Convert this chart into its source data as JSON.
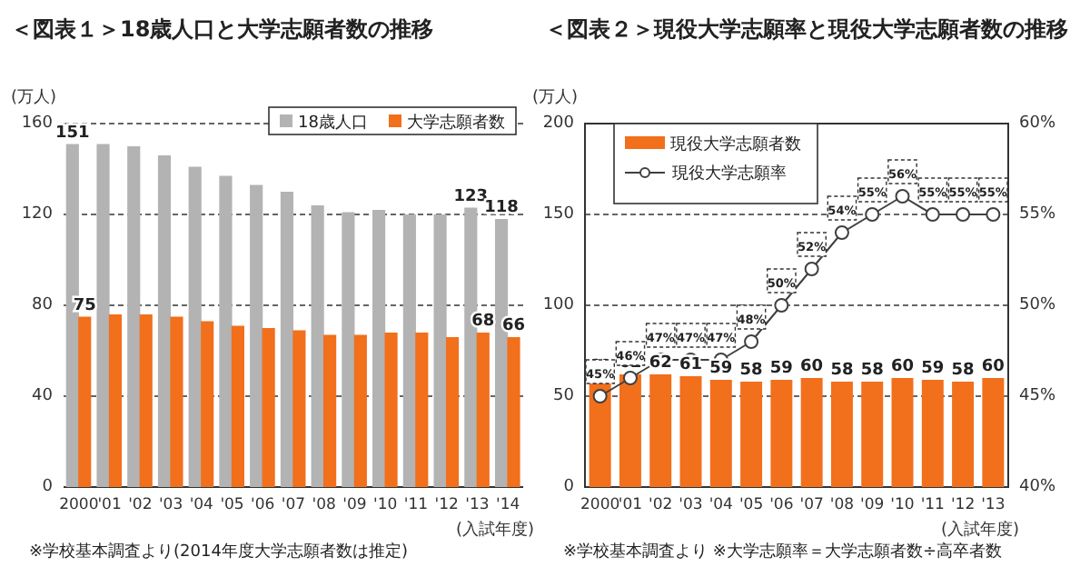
{
  "chart_data": [
    {
      "type": "bar",
      "title": "＜図表１＞18歳人口と大学志願者数の推移",
      "ylabel": "(万人)",
      "xlabel": "(入試年度)",
      "categories": [
        "2000",
        "'01",
        "'02",
        "'03",
        "'04",
        "'05",
        "'06",
        "'07",
        "'08",
        "'09",
        "'10",
        "'11",
        "'12",
        "'13",
        "'14"
      ],
      "series": [
        {
          "name": "18歳人口",
          "color": "#b3b3b3",
          "values": [
            151,
            151,
            150,
            146,
            141,
            137,
            133,
            130,
            124,
            121,
            122,
            120,
            120,
            123,
            118
          ],
          "value_labels": [
            "151",
            null,
            null,
            null,
            null,
            null,
            null,
            null,
            null,
            null,
            null,
            null,
            null,
            "123",
            "118"
          ]
        },
        {
          "name": "大学志願者数",
          "color": "#f26f1c",
          "values": [
            75,
            76,
            76,
            75,
            73,
            71,
            70,
            69,
            67,
            67,
            68,
            68,
            66,
            68,
            66
          ],
          "value_labels": [
            "75",
            null,
            null,
            null,
            null,
            null,
            null,
            null,
            null,
            null,
            null,
            null,
            null,
            "68",
            "66"
          ]
        }
      ],
      "ylim": [
        0,
        160
      ],
      "yticks": [
        0,
        40,
        80,
        120,
        160
      ],
      "grid": "y",
      "legend": "top right",
      "annotations": [
        "※学校基本調査より(2014年度大学志願者数は推定)"
      ]
    },
    {
      "type": "bar",
      "title": "＜図表２＞現役大学志願率と現役大学志願者数の推移",
      "ylabel": "(万人)",
      "xlabel": "(入試年度)",
      "categories": [
        "2000",
        "'01",
        "'02",
        "'03",
        "'04",
        "'05",
        "'06",
        "'07",
        "'08",
        "'09",
        "'10",
        "'11",
        "'12",
        "'13"
      ],
      "series": [
        {
          "name": "現役大学志願者数",
          "color": "#f26f1c",
          "values": [
            60,
            62,
            62,
            61,
            59,
            58,
            59,
            60,
            58,
            58,
            60,
            59,
            58,
            60
          ]
        },
        {
          "name": "現役大学志願率",
          "type": "line",
          "axis": "y2",
          "color": "#404040",
          "marker": "circle",
          "values": [
            45,
            46,
            47,
            47,
            47,
            48,
            50,
            52,
            54,
            55,
            56,
            55,
            55,
            55
          ],
          "value_labels": [
            "45%",
            "46%",
            "47%",
            "47%",
            "47%",
            "48%",
            "50%",
            "52%",
            "54%",
            "55%",
            "56%",
            "55%",
            "55%",
            "55%"
          ]
        }
      ],
      "data_labels": true,
      "ylim": [
        0,
        200
      ],
      "yticks": [
        0,
        50,
        100,
        150,
        200
      ],
      "y2lim": [
        40,
        60
      ],
      "y2ticks": [
        {
          "value": 40,
          "label": "40%"
        },
        {
          "value": 45,
          "label": "45%"
        },
        {
          "value": 50,
          "label": "50%"
        },
        {
          "value": 55,
          "label": "55%"
        },
        {
          "value": 60,
          "label": "60%"
        }
      ],
      "grid": "y",
      "legend": "top left",
      "annotations": [
        "※学校基本調査より ※大学志願率＝大学志願者数÷高卒者数"
      ]
    }
  ]
}
